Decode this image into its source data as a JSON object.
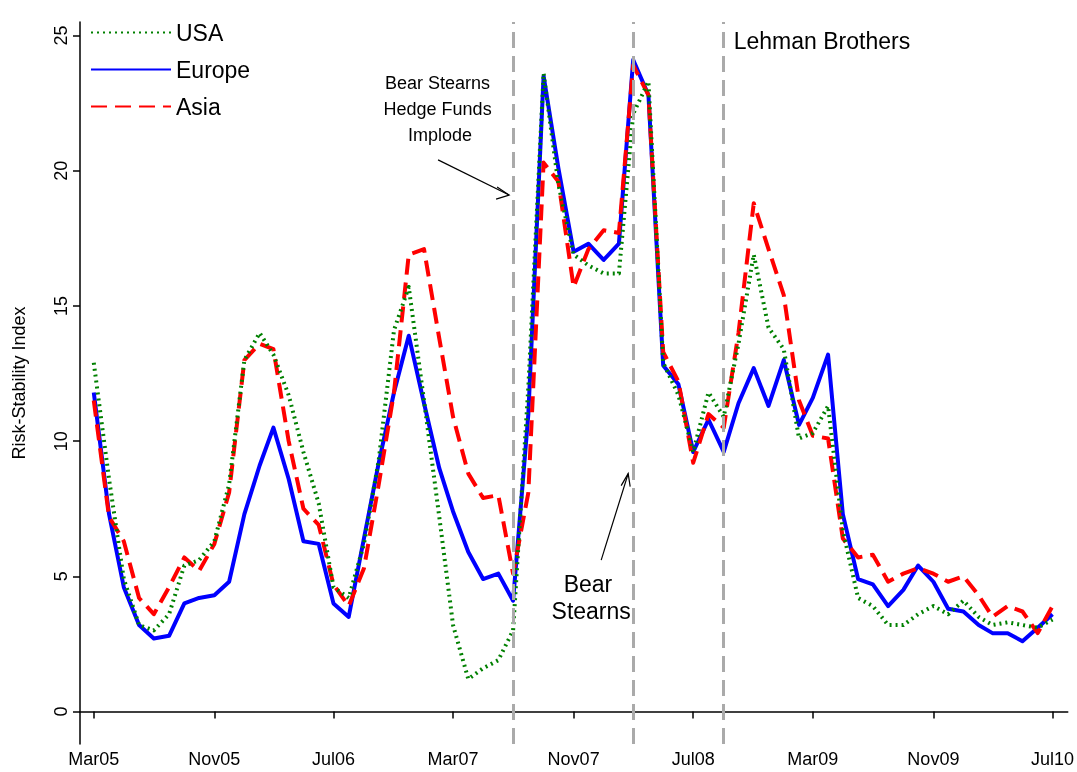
{
  "chart_data": {
    "type": "line",
    "ylabel": "Risk-Stability Index",
    "x": [
      "2005-03",
      "2005-04",
      "2005-05",
      "2005-06",
      "2005-07",
      "2005-08",
      "2005-09",
      "2005-10",
      "2005-11",
      "2005-12",
      "2006-01",
      "2006-02",
      "2006-03",
      "2006-04",
      "2006-05",
      "2006-06",
      "2006-07",
      "2006-08",
      "2006-09",
      "2006-10",
      "2006-11",
      "2006-12",
      "2007-01",
      "2007-02",
      "2007-03",
      "2007-04",
      "2007-05",
      "2007-06",
      "2007-07",
      "2007-08",
      "2007-09",
      "2007-10",
      "2007-11",
      "2007-12",
      "2008-01",
      "2008-02",
      "2008-03",
      "2008-04",
      "2008-05",
      "2008-06",
      "2008-07",
      "2008-08",
      "2008-09",
      "2008-10",
      "2008-11",
      "2008-12",
      "2009-01",
      "2009-02",
      "2009-03",
      "2009-04",
      "2009-05",
      "2009-06",
      "2009-07",
      "2009-08",
      "2009-09",
      "2009-10",
      "2009-11",
      "2009-12",
      "2010-01",
      "2010-02",
      "2010-03",
      "2010-04",
      "2010-05",
      "2010-06",
      "2010-07"
    ],
    "series": [
      {
        "name": "USA",
        "color": "#008000",
        "line_style": "dotted",
        "values": [
          12.9,
          8.6,
          4.9,
          3.2,
          3.0,
          3.6,
          5.4,
          5.6,
          6.3,
          8.4,
          13.0,
          14.0,
          13.2,
          11.7,
          9.6,
          7.7,
          4.6,
          4.2,
          6.2,
          9.3,
          14.1,
          15.7,
          11.5,
          7.2,
          3.2,
          1.2,
          1.6,
          1.9,
          3.0,
          12.0,
          23.6,
          19.5,
          16.9,
          16.5,
          16.2,
          16.2,
          22.1,
          23.3,
          12.9,
          11.7,
          9.6,
          11.8,
          10.9,
          13.6,
          16.9,
          14.2,
          13.4,
          10.1,
          10.3,
          11.3,
          6.7,
          4.2,
          3.9,
          3.2,
          3.2,
          3.6,
          3.9,
          3.6,
          4.1,
          3.5,
          3.2,
          3.3,
          3.2,
          3.1,
          3.4
        ]
      },
      {
        "name": "Europe",
        "color": "#0000ff",
        "line_style": "solid",
        "values": [
          11.8,
          7.3,
          4.6,
          3.2,
          2.7,
          2.8,
          4.0,
          4.2,
          4.3,
          4.8,
          7.3,
          9.1,
          10.5,
          8.6,
          6.3,
          6.2,
          4.0,
          3.5,
          6.4,
          9.2,
          11.8,
          13.9,
          11.4,
          9.0,
          7.4,
          5.9,
          4.9,
          5.1,
          4.1,
          11.0,
          23.5,
          20.1,
          17.0,
          17.3,
          16.7,
          17.3,
          24.1,
          22.8,
          12.8,
          12.1,
          9.6,
          10.8,
          9.6,
          11.4,
          12.7,
          11.3,
          13.0,
          10.6,
          11.6,
          13.2,
          7.3,
          4.9,
          4.7,
          3.9,
          4.5,
          5.4,
          4.8,
          3.8,
          3.7,
          3.2,
          2.9,
          2.9,
          2.6,
          3.1,
          3.6
        ]
      },
      {
        "name": "Asia",
        "color": "#ff0000",
        "line_style": "dashed",
        "values": [
          11.5,
          7.2,
          6.3,
          4.2,
          3.6,
          4.6,
          5.7,
          5.2,
          6.2,
          8.1,
          13.0,
          13.6,
          13.4,
          10.0,
          7.5,
          6.9,
          4.7,
          3.9,
          5.3,
          8.4,
          11.8,
          16.9,
          17.1,
          13.8,
          10.9,
          8.8,
          7.9,
          8.0,
          5.1,
          8.1,
          20.3,
          19.6,
          15.7,
          17.1,
          17.8,
          17.7,
          23.9,
          22.8,
          13.3,
          12.2,
          9.2,
          11.0,
          10.5,
          14.0,
          18.8,
          17.1,
          15.4,
          11.5,
          10.2,
          10.1,
          6.4,
          5.7,
          5.8,
          4.8,
          5.1,
          5.3,
          5.1,
          4.8,
          5.0,
          4.3,
          3.5,
          3.9,
          3.7,
          2.9,
          3.9
        ]
      }
    ],
    "xlim": [
      "2005-02",
      "2010-08"
    ],
    "xticks": [
      {
        "value": "2005-03",
        "label": "Mar05"
      },
      {
        "value": "2005-11",
        "label": "Nov05"
      },
      {
        "value": "2006-07",
        "label": "Jul06"
      },
      {
        "value": "2007-03",
        "label": "Mar07"
      },
      {
        "value": "2007-11",
        "label": "Nov07"
      },
      {
        "value": "2008-07",
        "label": "Jul08"
      },
      {
        "value": "2009-03",
        "label": "Mar09"
      },
      {
        "value": "2009-11",
        "label": "Nov09"
      },
      {
        "value": "2010-07",
        "label": "Jul10"
      }
    ],
    "ylim": [
      -1.2,
      25.5
    ],
    "yticks": [
      0,
      5,
      10,
      15,
      20,
      25
    ],
    "ref_lines": [
      {
        "axis": "x",
        "value": "2007-07",
        "label": "Bear Stearns Hedge Funds Implode",
        "color": "#aaaaaa",
        "line_style": "dashed"
      },
      {
        "axis": "x",
        "value": "2008-03",
        "label": "Bear Stearns",
        "color": "#aaaaaa",
        "line_style": "dashed"
      },
      {
        "axis": "x",
        "value": "2008-09",
        "label": "Lehman Brothers",
        "color": "#aaaaaa",
        "line_style": "dashed"
      }
    ],
    "grid": false,
    "legend": "top left",
    "marker": "none"
  }
}
